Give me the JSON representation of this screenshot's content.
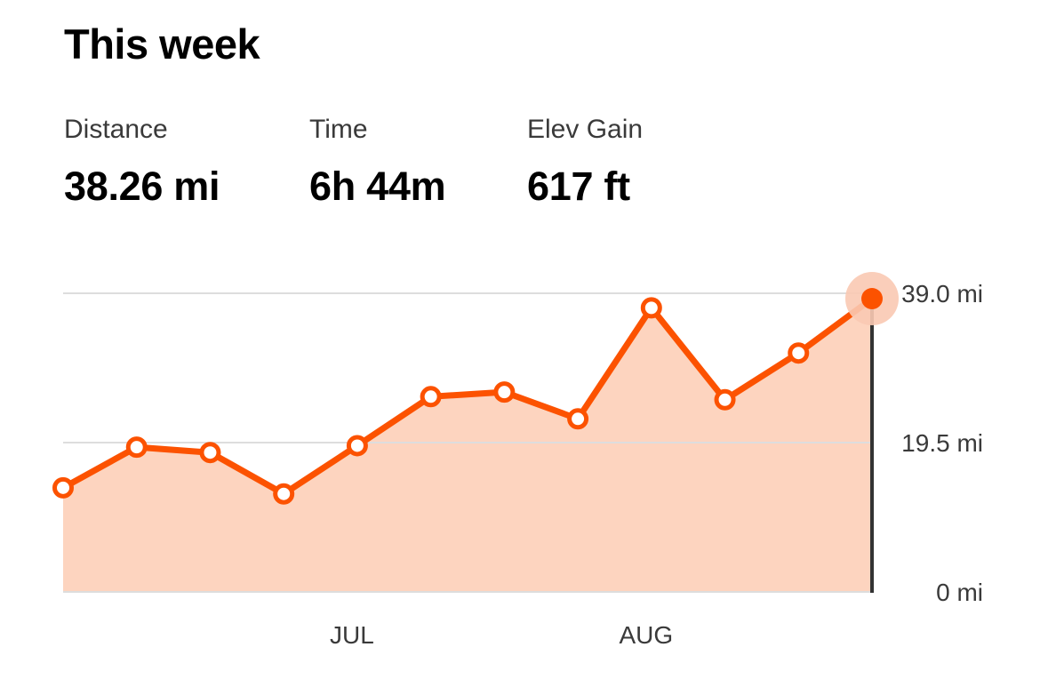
{
  "header": {
    "title": "This week"
  },
  "stats": [
    {
      "label": "Distance",
      "value": "38.26 mi"
    },
    {
      "label": "Time",
      "value": "6h 44m"
    },
    {
      "label": "Elev Gain",
      "value": "617 ft"
    }
  ],
  "chart_data": {
    "type": "area",
    "title": "",
    "xlabel": "",
    "ylabel": "",
    "ylim": [
      0,
      39.0
    ],
    "y_tick_labels": [
      "39.0 mi",
      "19.5 mi",
      "0 mi"
    ],
    "y_ticks": [
      39.0,
      19.5,
      0
    ],
    "x_tick_labels": [
      "JUL",
      "AUG"
    ],
    "x_tick_positions": [
      4,
      8
    ],
    "grid": true,
    "series": [
      {
        "values": [
          13.6,
          18.9,
          18.2,
          12.8,
          19.1,
          25.5,
          26.1,
          22.6,
          37.1,
          25.1,
          31.2,
          38.3
        ]
      }
    ],
    "highlighted_index": 11,
    "colors": {
      "line": "#fc5200",
      "fill": "#fdd4bf",
      "highlight_halo": "#f9c9b3",
      "marker_line": "#333333",
      "grid": "#dddddd"
    }
  }
}
